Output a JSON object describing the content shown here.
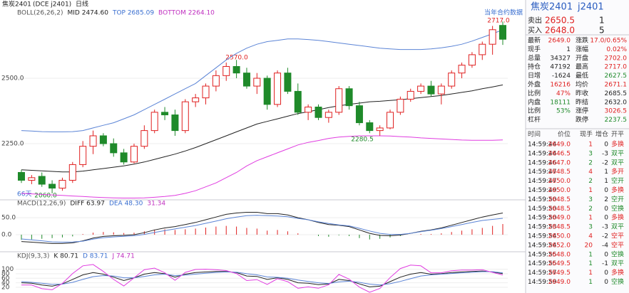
{
  "header": {
    "symbol": "焦炭2401",
    "exchange": "(DCE j2401)",
    "period": "日线"
  },
  "chart_data": [
    {
      "type": "candlestick",
      "legend": [
        "BOLL(26,26,2)",
        "MID 2474.60",
        "TOP 2685.09",
        "BOTTOM 2264.10"
      ],
      "ylim": [
        2038,
        2761
      ],
      "yticks": [
        {
          "value": 2250,
          "label": "2250.0"
        },
        {
          "value": 2500,
          "label": "2500.0"
        }
      ],
      "annotations": [
        "2717.0",
        "2570.0",
        "2280.5",
        "2060.0",
        "当年合约数据",
        "66天"
      ],
      "up_color": "#e02020",
      "down_color": "#1f8a2a",
      "candles": [
        [
          2140,
          2150,
          2100,
          2110
        ],
        [
          2110,
          2130,
          2095,
          2120
        ],
        [
          2125,
          2140,
          2085,
          2095
        ],
        [
          2095,
          2110,
          2060,
          2080
        ],
        [
          2080,
          2120,
          2070,
          2110
        ],
        [
          2110,
          2180,
          2100,
          2170
        ],
        [
          2170,
          2260,
          2160,
          2240
        ],
        [
          2240,
          2300,
          2210,
          2280
        ],
        [
          2280,
          2290,
          2240,
          2250
        ],
        [
          2250,
          2270,
          2200,
          2215
        ],
        [
          2215,
          2230,
          2170,
          2180
        ],
        [
          2180,
          2250,
          2175,
          2240
        ],
        [
          2240,
          2320,
          2230,
          2300
        ],
        [
          2300,
          2380,
          2290,
          2370
        ],
        [
          2370,
          2390,
          2340,
          2360
        ],
        [
          2360,
          2380,
          2280,
          2300
        ],
        [
          2300,
          2420,
          2290,
          2410
        ],
        [
          2410,
          2440,
          2390,
          2425
        ],
        [
          2425,
          2480,
          2400,
          2470
        ],
        [
          2470,
          2530,
          2450,
          2510
        ],
        [
          2510,
          2560,
          2490,
          2545
        ],
        [
          2545,
          2570,
          2500,
          2520
        ],
        [
          2520,
          2540,
          2460,
          2470
        ],
        [
          2470,
          2520,
          2440,
          2500
        ],
        [
          2500,
          2510,
          2380,
          2400
        ],
        [
          2400,
          2530,
          2390,
          2520
        ],
        [
          2520,
          2540,
          2440,
          2450
        ],
        [
          2450,
          2480,
          2360,
          2370
        ],
        [
          2370,
          2400,
          2340,
          2390
        ],
        [
          2390,
          2400,
          2340,
          2350
        ],
        [
          2350,
          2380,
          2330,
          2370
        ],
        [
          2370,
          2470,
          2360,
          2460
        ],
        [
          2460,
          2470,
          2380,
          2395
        ],
        [
          2395,
          2410,
          2320,
          2330
        ],
        [
          2330,
          2340,
          2290,
          2300
        ],
        [
          2300,
          2320,
          2280.5,
          2310
        ],
        [
          2310,
          2380,
          2305,
          2370
        ],
        [
          2370,
          2430,
          2360,
          2420
        ],
        [
          2420,
          2460,
          2410,
          2450
        ],
        [
          2450,
          2480,
          2440,
          2470
        ],
        [
          2470,
          2490,
          2430,
          2440
        ],
        [
          2440,
          2480,
          2400,
          2470
        ],
        [
          2470,
          2530,
          2460,
          2520
        ],
        [
          2520,
          2560,
          2500,
          2550
        ],
        [
          2550,
          2600,
          2540,
          2590
        ],
        [
          2590,
          2640,
          2570,
          2630
        ],
        [
          2630,
          2700,
          2590,
          2685.5
        ],
        [
          2702,
          2717,
          2627.5,
          2649
        ]
      ],
      "series": [
        {
          "name": "MID",
          "color": "#222222",
          "values": [
            2150,
            2148,
            2146,
            2144,
            2142,
            2142,
            2145,
            2150,
            2155,
            2160,
            2165,
            2172,
            2180,
            2190,
            2200,
            2210,
            2222,
            2235,
            2250,
            2265,
            2280,
            2295,
            2310,
            2325,
            2335,
            2345,
            2355,
            2365,
            2372,
            2380,
            2388,
            2395,
            2400,
            2405,
            2410,
            2412,
            2415,
            2418,
            2422,
            2426,
            2430,
            2434,
            2440,
            2446,
            2452,
            2460,
            2467,
            2474.6
          ]
        },
        {
          "name": "TOP",
          "color": "#5b84d6",
          "values": [
            2300,
            2298,
            2296,
            2295,
            2295,
            2296,
            2300,
            2310,
            2320,
            2330,
            2345,
            2360,
            2380,
            2400,
            2420,
            2440,
            2460,
            2480,
            2510,
            2540,
            2570,
            2595,
            2615,
            2630,
            2640,
            2645,
            2650,
            2650,
            2648,
            2645,
            2640,
            2635,
            2630,
            2625,
            2620,
            2615,
            2612,
            2610,
            2610,
            2610,
            2612,
            2616,
            2622,
            2630,
            2642,
            2656,
            2670,
            2685.09
          ]
        },
        {
          "name": "BOTTOM",
          "color": "#e03ce0",
          "values": [
            2060,
            2058,
            2056,
            2054,
            2052,
            2050,
            2048,
            2046,
            2044,
            2043,
            2042,
            2042,
            2043,
            2045,
            2048,
            2052,
            2060,
            2070,
            2085,
            2100,
            2120,
            2140,
            2165,
            2185,
            2200,
            2215,
            2230,
            2245,
            2255,
            2262,
            2270,
            2275,
            2278,
            2280,
            2280,
            2280,
            2279,
            2277,
            2275,
            2272,
            2270,
            2268,
            2266,
            2264,
            2263,
            2263,
            2263,
            2264.1
          ]
        }
      ]
    },
    {
      "type": "macd",
      "legend": [
        "MACD(12,26,9)",
        "DIFF 63.97",
        "DEA 48.30",
        "31.34"
      ],
      "ylim": [
        -46,
        88
      ],
      "yticks": [
        {
          "value": 0,
          "label": "0.0"
        },
        {
          "value": 50,
          "label": "50.0"
        }
      ],
      "hist": [
        -15,
        -14,
        -12,
        -10,
        -8,
        -5,
        2,
        6,
        8,
        7,
        5,
        6,
        10,
        15,
        16,
        14,
        16,
        18,
        21,
        24,
        26,
        24,
        20,
        18,
        12,
        14,
        10,
        4,
        0,
        -4,
        -6,
        -2,
        -4,
        -10,
        -14,
        -12,
        -8,
        -4,
        0,
        2,
        2,
        4,
        8,
        12,
        16,
        20,
        26,
        31.34
      ],
      "series": [
        {
          "name": "DIFF",
          "color": "#222222",
          "values": [
            -20,
            -22,
            -24,
            -26,
            -26,
            -24,
            -18,
            -10,
            -5,
            -3,
            -2,
            0,
            6,
            14,
            20,
            24,
            30,
            36,
            44,
            52,
            60,
            64,
            66,
            66,
            62,
            62,
            58,
            50,
            44,
            36,
            30,
            28,
            24,
            14,
            4,
            -2,
            -3,
            -1,
            4,
            10,
            14,
            20,
            28,
            36,
            44,
            52,
            58,
            63.97
          ]
        },
        {
          "name": "DEA",
          "color": "#5b84d6",
          "values": [
            -12.5,
            -15,
            -18,
            -21,
            -22,
            -21.5,
            -19,
            -13,
            -9,
            -6.5,
            -4.5,
            -3,
            1,
            6.5,
            12,
            17,
            22,
            27,
            33.5,
            40,
            47,
            52,
            56,
            57,
            56,
            55,
            53,
            48,
            44,
            38,
            33,
            29,
            26,
            19,
            11,
            4,
            1,
            1,
            4,
            9,
            13,
            18,
            24,
            30,
            36,
            42,
            45,
            48.3
          ]
        }
      ]
    },
    {
      "type": "kdj",
      "legend": [
        "KDJ(9,3,3)",
        "K 80.71",
        "D 83.71",
        "J 74.71"
      ],
      "ylim": [
        -2,
        152
      ],
      "yticks": [
        20,
        40,
        60,
        80,
        100
      ],
      "series": [
        {
          "name": "K",
          "color": "#222222",
          "values": [
            40,
            38,
            30,
            25,
            35,
            55,
            75,
            85,
            78,
            65,
            50,
            62,
            78,
            85,
            80,
            65,
            78,
            85,
            88,
            90,
            90,
            85,
            70,
            68,
            55,
            62,
            55,
            40,
            38,
            32,
            35,
            55,
            50,
            35,
            22,
            25,
            45,
            65,
            78,
            85,
            78,
            80,
            85,
            88,
            90,
            92,
            88,
            80.71
          ]
        },
        {
          "name": "D",
          "color": "#5b84d6",
          "values": [
            45,
            42,
            38,
            33,
            34,
            42,
            55,
            67,
            72,
            70,
            62,
            62,
            68,
            75,
            78,
            72,
            74,
            78,
            82,
            86,
            88,
            87,
            80,
            75,
            66,
            64,
            60,
            52,
            46,
            40,
            37,
            44,
            47,
            42,
            34,
            30,
            36,
            46,
            58,
            70,
            75,
            78,
            81,
            84,
            87,
            89,
            89,
            83.71
          ]
        },
        {
          "name": "J",
          "color": "#e03ce0",
          "values": [
            30,
            30,
            14,
            9,
            37,
            81,
            115,
            121,
            90,
            55,
            26,
            62,
            98,
            105,
            84,
            51,
            86,
            99,
            100,
            98,
            94,
            81,
            50,
            54,
            33,
            58,
            45,
            16,
            22,
            16,
            31,
            77,
            56,
            21,
            -2,
            15,
            63,
            103,
            118,
            115,
            84,
            84,
            93,
            96,
            96,
            98,
            86,
            74.71
          ]
        }
      ]
    }
  ],
  "quote": {
    "name": "焦炭2401",
    "code": "j2401",
    "ask": [
      "卖出",
      "2650.5",
      "1"
    ],
    "bid": [
      "买入",
      "2648.0",
      "5"
    ],
    "rows": [
      [
        "最新",
        "2649.0",
        "涨跌",
        "17.0/0.65%"
      ],
      [
        "现手",
        "1",
        "涨幅",
        "0.02%"
      ],
      [
        "总量",
        "34327",
        "开盘",
        "2702.0"
      ],
      [
        "持仓",
        "47192",
        "最高",
        "2717.0"
      ],
      [
        "日增",
        "-1624",
        "最低",
        "2627.5"
      ],
      [
        "外盘",
        "16216",
        "均价",
        "2671.1"
      ],
      [
        "比例",
        "47%",
        "昨收",
        "2685.5"
      ],
      [
        "内盘",
        "18111",
        "昨结",
        "2632.0"
      ],
      [
        "比例",
        "53%",
        "涨停",
        "3026.5"
      ],
      [
        "杠杆",
        null,
        "跌停",
        "2237.5"
      ]
    ],
    "tones": [
      [
        "#e02020",
        "#e02020"
      ],
      [
        "#222222",
        "#e02020"
      ],
      [
        "#222222",
        "#e02020"
      ],
      [
        "#222222",
        "#e02020"
      ],
      [
        "#222222",
        "#1f8a2a"
      ],
      [
        "#e02020",
        "#e02020"
      ],
      [
        "#e02020",
        "#222222"
      ],
      [
        "#1f8a2a",
        "#222222"
      ],
      [
        "#1f8a2a",
        "#e02020"
      ],
      [
        "#222222",
        "#1f8a2a"
      ]
    ]
  },
  "trades": {
    "columns": [
      "时间",
      "价位",
      "现手",
      "增仓",
      "开平"
    ],
    "price_color": "#e02020",
    "rows": [
      [
        "14:59:44",
        "2649.0",
        "1",
        "0",
        "多换"
      ],
      [
        "14:59:44",
        "2646.5",
        "3",
        "-3",
        "双平"
      ],
      [
        "14:59:46",
        "2647.0",
        "2",
        "-2",
        "双平"
      ],
      [
        "14:59:47",
        "2648.5",
        "4",
        "1",
        "多开"
      ],
      [
        "14:59:47",
        "2650.0",
        "2",
        "1",
        "空开"
      ],
      [
        "14:59:49",
        "2650.0",
        "1",
        "0",
        "多换"
      ],
      [
        "14:59:50",
        "2648.5",
        "3",
        "2",
        "空开"
      ],
      [
        "14:59:50",
        "2648.5",
        "2",
        "0",
        "空换"
      ],
      [
        "14:59:50",
        "2649.0",
        "1",
        "0",
        "多换"
      ],
      [
        "14:59:53",
        "2648.5",
        "3",
        "-3",
        "双平"
      ],
      [
        "14:59:54",
        "2650.0",
        "4",
        "-2",
        "空平"
      ],
      [
        "14:59:54",
        "2652.0",
        "20",
        "-4",
        "空平"
      ],
      [
        "14:59:55",
        "2648.0",
        "1",
        "0",
        "空换"
      ],
      [
        "14:59:55",
        "2649.5",
        "1",
        "-1",
        "双平"
      ],
      [
        "14:59:57",
        "2649.5",
        "1",
        "0",
        "多换"
      ],
      [
        "14:59:59",
        "2649.0",
        "1",
        "0",
        "空换"
      ]
    ],
    "tones": [
      "#e02020",
      "#1f8a2a",
      "#1f8a2a",
      "#e02020",
      "#1f8a2a",
      "#e02020",
      "#1f8a2a",
      "#1f8a2a",
      "#e02020",
      "#1f8a2a",
      "#e02020",
      "#e02020",
      "#1f8a2a",
      "#1f8a2a",
      "#e02020",
      "#1f8a2a"
    ]
  }
}
